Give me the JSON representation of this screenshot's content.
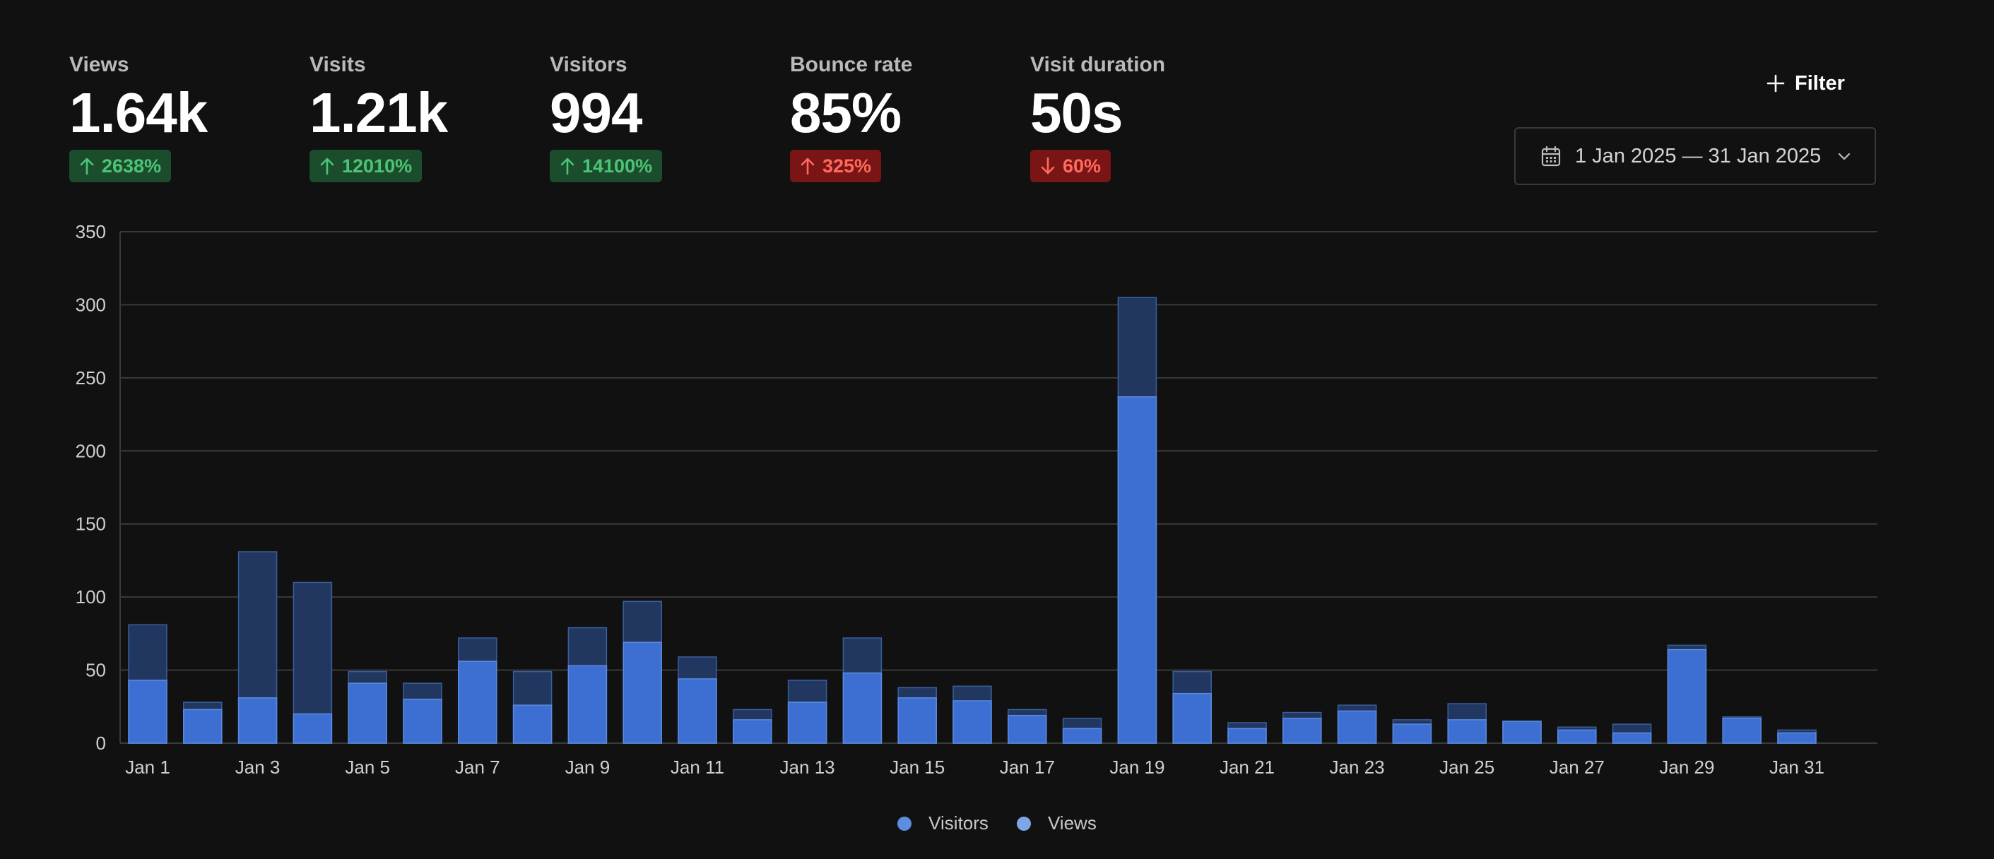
{
  "metrics": [
    {
      "label": "Views",
      "value": "1.64k",
      "change": "2638%",
      "direction": "up",
      "tone": "good"
    },
    {
      "label": "Visits",
      "value": "1.21k",
      "change": "12010%",
      "direction": "up",
      "tone": "good"
    },
    {
      "label": "Visitors",
      "value": "994",
      "change": "14100%",
      "direction": "up",
      "tone": "good"
    },
    {
      "label": "Bounce rate",
      "value": "85%",
      "change": "325%",
      "direction": "up",
      "tone": "bad"
    },
    {
      "label": "Visit duration",
      "value": "50s",
      "change": "60%",
      "direction": "down",
      "tone": "bad"
    }
  ],
  "toolbar": {
    "filter_label": "Filter",
    "date_range": "1 Jan 2025 — 31 Jan 2025"
  },
  "icons": {
    "filter": "plus-icon",
    "date": "calendar-icon",
    "dropdown": "chevron-down-icon",
    "up": "arrow-up-icon",
    "down": "arrow-down-icon"
  },
  "colors": {
    "background": "#111111",
    "visitors": "#3c6fd1",
    "views": "#22375f",
    "legend_visitors": "#5c8ee0",
    "legend_views": "#7ea6e6",
    "grid": "#3a3a3a",
    "positive_bg": "#1b4d2c",
    "positive_text": "#4cc476",
    "negative_bg": "#7a1515",
    "negative_text": "#ff6a5c"
  },
  "chart_data": {
    "type": "bar",
    "stacked": "overlay",
    "categories": [
      "Jan 1",
      "Jan 2",
      "Jan 3",
      "Jan 4",
      "Jan 5",
      "Jan 6",
      "Jan 7",
      "Jan 8",
      "Jan 9",
      "Jan 10",
      "Jan 11",
      "Jan 12",
      "Jan 13",
      "Jan 14",
      "Jan 15",
      "Jan 16",
      "Jan 17",
      "Jan 18",
      "Jan 19",
      "Jan 20",
      "Jan 21",
      "Jan 22",
      "Jan 23",
      "Jan 24",
      "Jan 25",
      "Jan 26",
      "Jan 27",
      "Jan 28",
      "Jan 29",
      "Jan 30",
      "Jan 31"
    ],
    "x_tick_labels": [
      "Jan 1",
      "Jan 3",
      "Jan 5",
      "Jan 7",
      "Jan 9",
      "Jan 11",
      "Jan 13",
      "Jan 15",
      "Jan 17",
      "Jan 19",
      "Jan 21",
      "Jan 23",
      "Jan 25",
      "Jan 27",
      "Jan 29",
      "Jan 31"
    ],
    "series": [
      {
        "name": "Visitors",
        "values": [
          43,
          23,
          31,
          20,
          41,
          30,
          56,
          26,
          53,
          69,
          44,
          16,
          28,
          48,
          31,
          29,
          19,
          10,
          237,
          34,
          10,
          17,
          22,
          13,
          16,
          15,
          9,
          7,
          64,
          17,
          7
        ]
      },
      {
        "name": "Views",
        "values": [
          81,
          28,
          131,
          110,
          49,
          41,
          72,
          49,
          79,
          97,
          59,
          23,
          43,
          72,
          38,
          39,
          23,
          17,
          305,
          49,
          14,
          21,
          26,
          16,
          27,
          15,
          11,
          13,
          67,
          18,
          9
        ]
      }
    ],
    "ylim": [
      0,
      350
    ],
    "y_ticks": [
      0,
      50,
      100,
      150,
      200,
      250,
      300,
      350
    ],
    "grid": true,
    "legend": "bottom-center"
  }
}
